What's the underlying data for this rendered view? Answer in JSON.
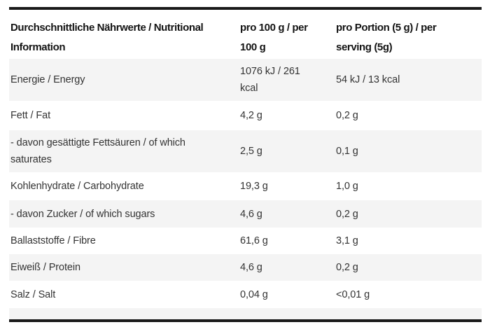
{
  "table": {
    "accent_border_color": "#1a1a1a",
    "stripe_color": "#f4f4f4",
    "text_color": "#333333",
    "header_text_color": "#141414",
    "header": {
      "nutrient": [
        "Durchschnittliche Nährwerte / Nutritional",
        "Information"
      ],
      "per_100g": [
        "pro 100 g / per",
        "100 g"
      ],
      "per_serving": [
        "pro Portion (5 g) / per",
        "serving (5g)"
      ]
    },
    "rows": [
      {
        "label": [
          "Energie / Energy"
        ],
        "per_100g": [
          "1076 kJ / 261",
          "kcal"
        ],
        "per_serving": [
          "54 kJ / 13 kcal"
        ]
      },
      {
        "label": [
          "Fett / Fat"
        ],
        "per_100g": [
          "4,2 g"
        ],
        "per_serving": [
          "0,2 g"
        ]
      },
      {
        "label": [
          "- davon gesättigte Fettsäuren / of which",
          "saturates"
        ],
        "per_100g": [
          "2,5 g"
        ],
        "per_serving": [
          "0,1 g"
        ]
      },
      {
        "label": [
          "Kohlenhydrate / Carbohydrate"
        ],
        "per_100g": [
          "19,3 g"
        ],
        "per_serving": [
          "1,0 g"
        ]
      },
      {
        "label": [
          "- davon Zucker / of which sugars"
        ],
        "per_100g": [
          "4,6 g"
        ],
        "per_serving": [
          "0,2 g"
        ]
      },
      {
        "label": [
          "Ballaststoffe / Fibre"
        ],
        "per_100g": [
          "61,6 g"
        ],
        "per_serving": [
          "3,1 g"
        ]
      },
      {
        "label": [
          "Eiweiß / Protein"
        ],
        "per_100g": [
          "4,6 g"
        ],
        "per_serving": [
          "0,2 g"
        ]
      },
      {
        "label": [
          "Salz / Salt"
        ],
        "per_100g": [
          "0,04 g"
        ],
        "per_serving": [
          "<0,01 g"
        ]
      }
    ]
  }
}
